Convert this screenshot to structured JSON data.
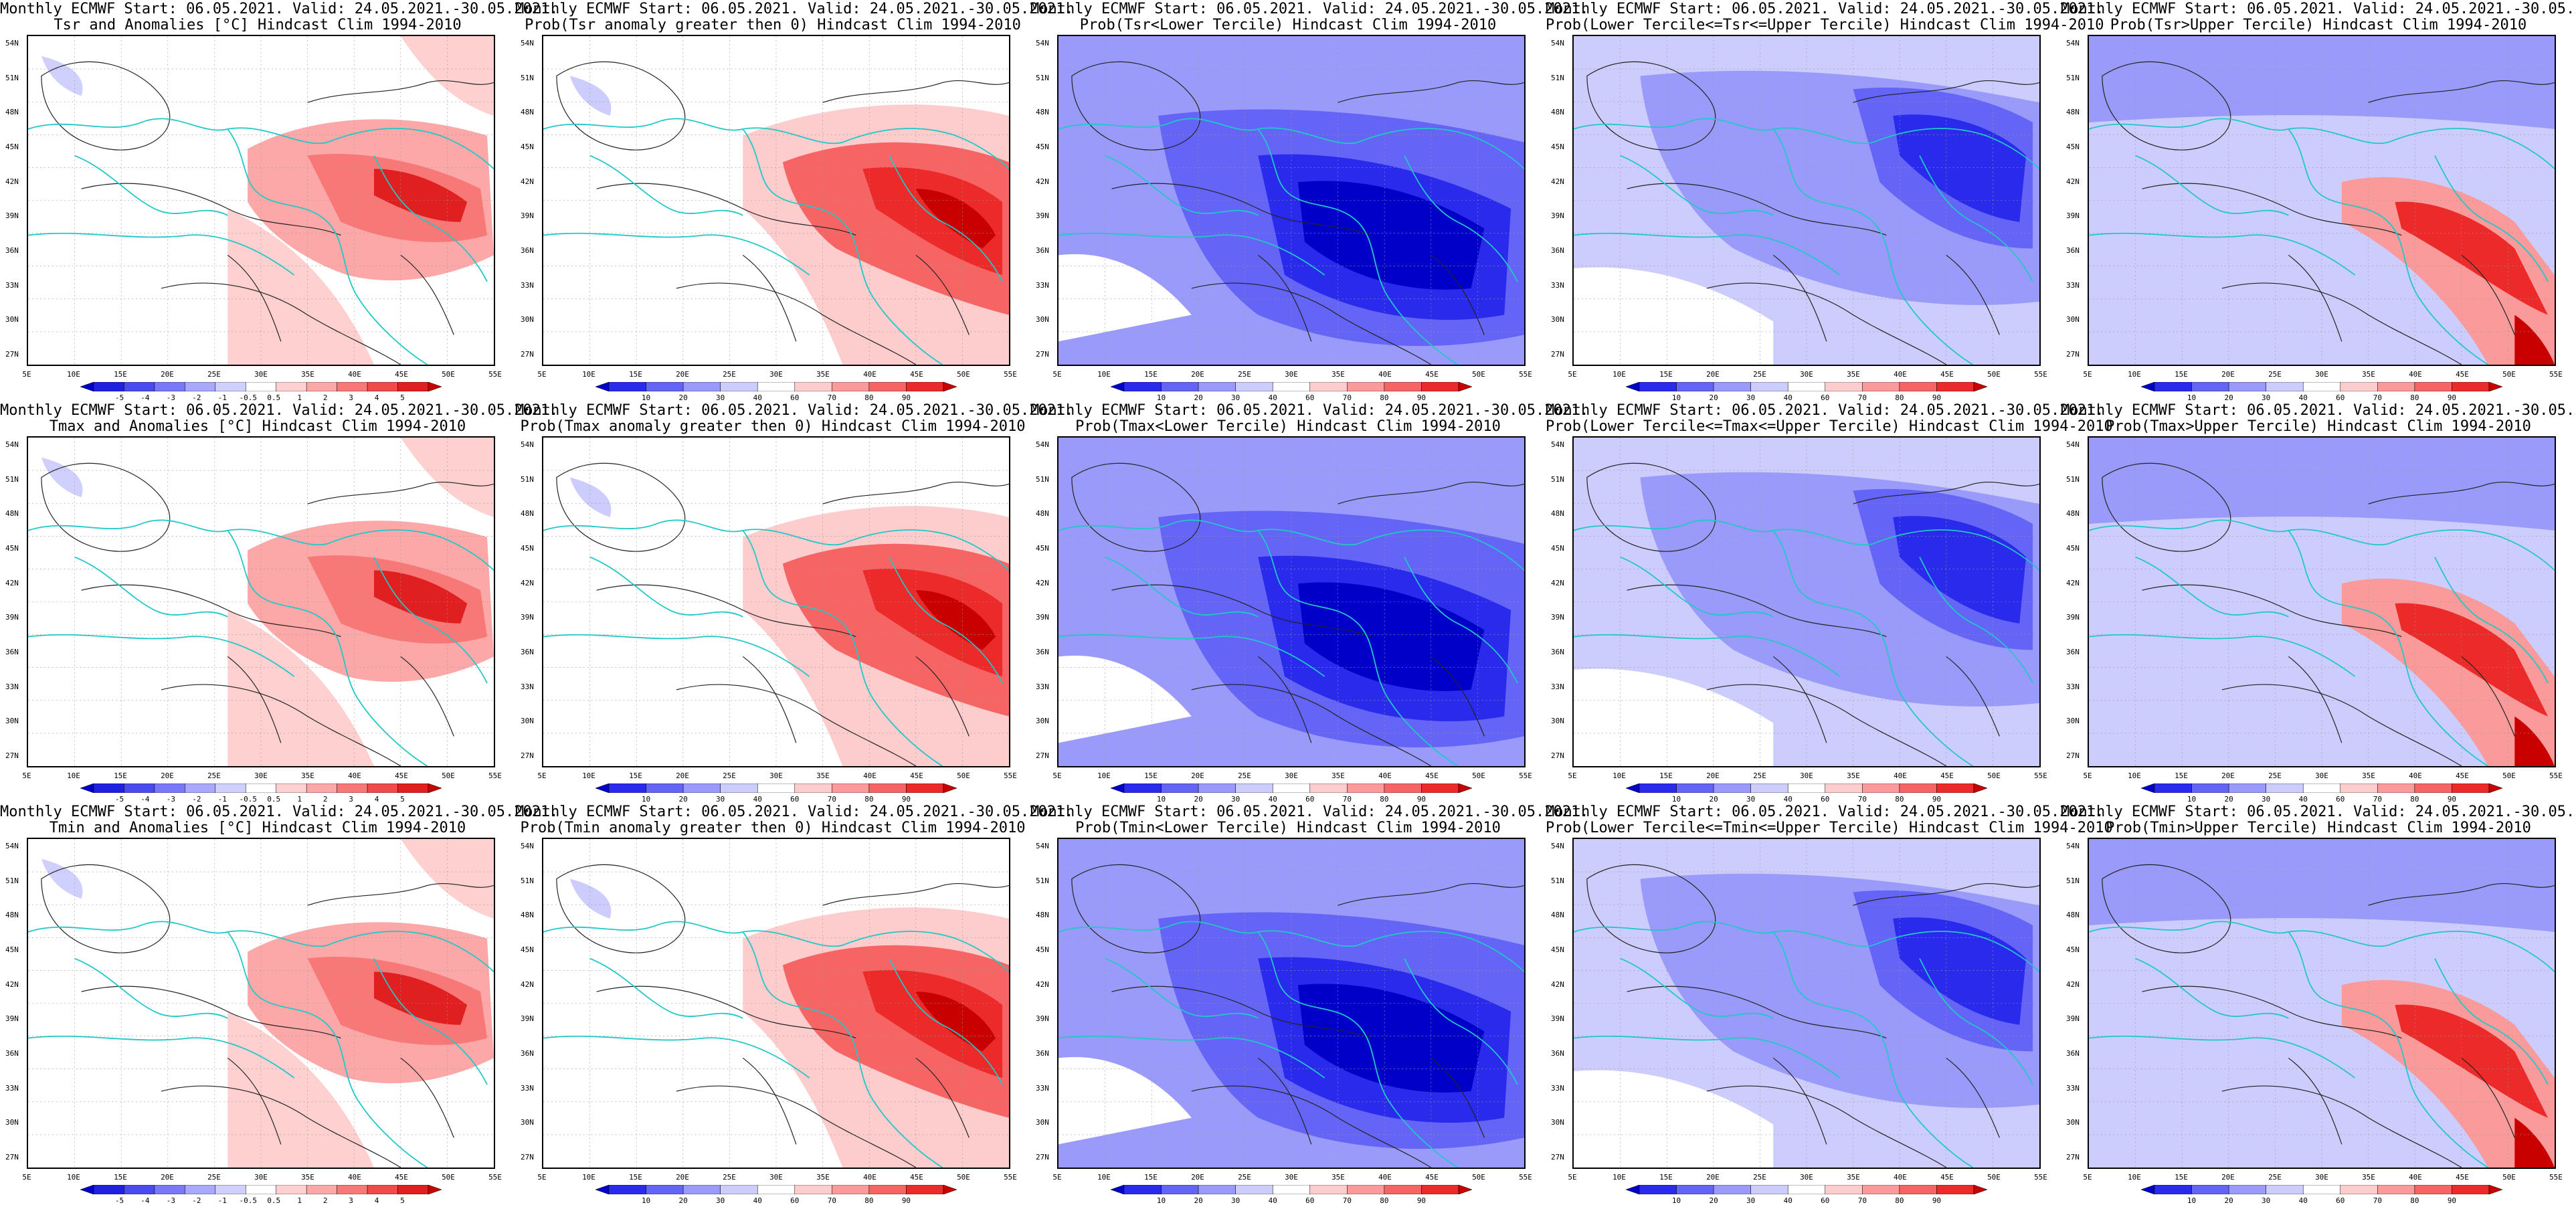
{
  "title_line_1": "Monthly ECMWF Start: 06.05.2021. Valid: 24.05.2021.-30.05.2021.",
  "lat_ticks": [
    "54N",
    "51N",
    "48N",
    "45N",
    "42N",
    "39N",
    "36N",
    "33N",
    "30N",
    "27N"
  ],
  "lon_ticks": [
    "5E",
    "10E",
    "15E",
    "20E",
    "25E",
    "30E",
    "35E",
    "40E",
    "45E",
    "50E",
    "55E"
  ],
  "colorbars": {
    "anomaly": {
      "labels": [
        "-5",
        "-4",
        "-3",
        "-2",
        "-1",
        "-0.5",
        "0.5",
        "1",
        "2",
        "3",
        "4",
        "5"
      ],
      "colors": [
        "#0000c8",
        "#2020e0",
        "#4a4af0",
        "#7878f8",
        "#a8a8fc",
        "#d0d0fe",
        "#ffffff",
        "#fed0d0",
        "#fca8a8",
        "#f87878",
        "#f04a4a",
        "#e02020",
        "#c80000"
      ]
    },
    "probability": {
      "labels": [
        "10",
        "20",
        "30",
        "40",
        "60",
        "70",
        "80",
        "90"
      ],
      "colors": [
        "#0000c8",
        "#2a2aec",
        "#6464f6",
        "#9a9afa",
        "#ccccfd",
        "#ffffff",
        "#fdcccc",
        "#fa9a9a",
        "#f66464",
        "#ec2a2a",
        "#c80000"
      ]
    }
  },
  "panels": [
    {
      "row": 0,
      "col": 0,
      "title_line_2": "Tsr and Anomalies [°C] Hindcast Clim 1994-2010",
      "colorbar": "anomaly",
      "pattern": "warm"
    },
    {
      "row": 0,
      "col": 1,
      "title_line_2": "Prob(Tsr anomaly greater then 0) Hindcast Clim 1994-2010",
      "colorbar": "probability",
      "pattern": "warm_strong"
    },
    {
      "row": 0,
      "col": 2,
      "title_line_2": "Prob(Tsr<Lower Tercile) Hindcast Clim 1994-2010",
      "colorbar": "probability",
      "pattern": "cold"
    },
    {
      "row": 0,
      "col": 3,
      "title_line_2": "Prob(Lower Tercile<=Tsr<=Upper Tercile) Hindcast Clim 1994-2010",
      "colorbar": "probability",
      "pattern": "cold_mixed"
    },
    {
      "row": 0,
      "col": 4,
      "title_line_2": "Prob(Tsr>Upper Tercile) Hindcast Clim 1994-2010",
      "colorbar": "probability",
      "pattern": "cold_warm_spot"
    },
    {
      "row": 1,
      "col": 0,
      "title_line_2": "Tmax and Anomalies [°C] Hindcast Clim 1994-2010",
      "colorbar": "anomaly",
      "pattern": "warm"
    },
    {
      "row": 1,
      "col": 1,
      "title_line_2": "Prob(Tmax anomaly greater then 0) Hindcast Clim 1994-2010",
      "colorbar": "probability",
      "pattern": "warm_strong"
    },
    {
      "row": 1,
      "col": 2,
      "title_line_2": "Prob(Tmax<Lower Tercile) Hindcast Clim 1994-2010",
      "colorbar": "probability",
      "pattern": "cold"
    },
    {
      "row": 1,
      "col": 3,
      "title_line_2": "Prob(Lower Tercile<=Tmax<=Upper Tercile) Hindcast Clim 1994-2010",
      "colorbar": "probability",
      "pattern": "cold_mixed"
    },
    {
      "row": 1,
      "col": 4,
      "title_line_2": "Prob(Tmax>Upper Tercile) Hindcast Clim 1994-2010",
      "colorbar": "probability",
      "pattern": "cold_warm_spot"
    },
    {
      "row": 2,
      "col": 0,
      "title_line_2": "Tmin and Anomalies [°C] Hindcast Clim 1994-2010",
      "colorbar": "anomaly",
      "pattern": "warm"
    },
    {
      "row": 2,
      "col": 1,
      "title_line_2": "Prob(Tmin anomaly greater then 0) Hindcast Clim 1994-2010",
      "colorbar": "probability",
      "pattern": "warm_strong"
    },
    {
      "row": 2,
      "col": 2,
      "title_line_2": "Prob(Tmin<Lower Tercile) Hindcast Clim 1994-2010",
      "colorbar": "probability",
      "pattern": "cold"
    },
    {
      "row": 2,
      "col": 3,
      "title_line_2": "Prob(Lower Tercile<=Tmin<=Upper Tercile) Hindcast Clim 1994-2010",
      "colorbar": "probability",
      "pattern": "cold_mixed"
    },
    {
      "row": 2,
      "col": 4,
      "title_line_2": "Prob(Tmin>Upper Tercile) Hindcast Clim 1994-2010",
      "colorbar": "probability",
      "pattern": "cold_warm_spot"
    }
  ]
}
